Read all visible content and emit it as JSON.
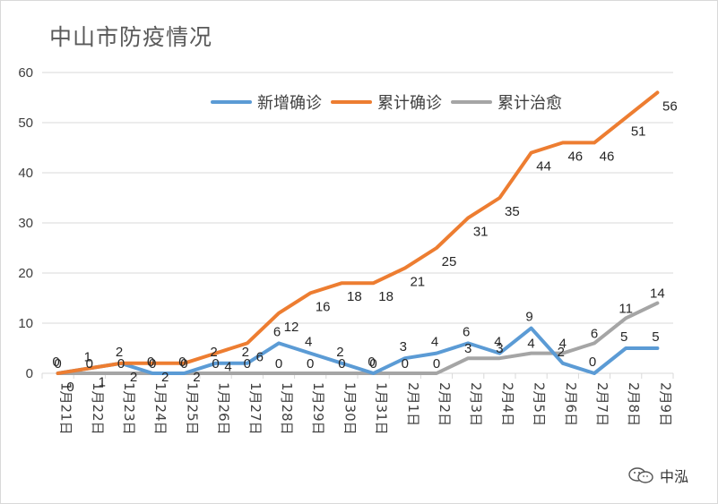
{
  "chart_data": {
    "type": "line",
    "title": "中山市防疫情况",
    "categories": [
      "1月21日",
      "1月22日",
      "1月23日",
      "1月24日",
      "1月25日",
      "1月26日",
      "1月27日",
      "1月28日",
      "1月29日",
      "1月30日",
      "1月31日",
      "2月1日",
      "2月2日",
      "2月3日",
      "2月4日",
      "2月5日",
      "2月6日",
      "2月7日",
      "2月8日",
      "2月9日"
    ],
    "ylim": [
      0,
      60
    ],
    "yticks": [
      0,
      10,
      20,
      30,
      40,
      50,
      60
    ],
    "grid": true,
    "legend_position": "top",
    "series": [
      {
        "name": "新增确诊",
        "color": "#5b9bd5",
        "values": [
          0,
          1,
          2,
          0,
          0,
          2,
          2,
          6,
          4,
          2,
          0,
          3,
          4,
          6,
          4,
          9,
          2,
          0,
          5,
          5
        ]
      },
      {
        "name": "累计确诊",
        "color": "#ed7d31",
        "values": [
          0,
          1,
          2,
          2,
          2,
          4,
          6,
          12,
          16,
          18,
          18,
          21,
          25,
          31,
          35,
          44,
          46,
          46,
          51,
          56
        ]
      },
      {
        "name": "累计治愈",
        "color": "#a5a5a5",
        "values": [
          0,
          0,
          0,
          0,
          0,
          0,
          0,
          0,
          0,
          0,
          0,
          0,
          0,
          3,
          3,
          4,
          4,
          6,
          11,
          14
        ]
      }
    ],
    "data_labels": [
      [
        "0",
        "1",
        "2",
        "0",
        "0",
        "2",
        "2",
        "6",
        "4",
        "2",
        "0",
        "3",
        "4",
        "6",
        "4",
        "9",
        "2",
        "0",
        "5",
        "5"
      ],
      [
        "0",
        "1",
        "2",
        "2",
        "2",
        "4",
        "6",
        "12",
        "16",
        "18",
        "18",
        "21",
        "25",
        "31",
        "35",
        "44",
        "46",
        "46",
        "51",
        "56"
      ],
      [
        "0",
        "0",
        "0",
        "0",
        "0",
        "0",
        "0",
        "0",
        "0",
        "0",
        "0",
        "0",
        "0",
        "3",
        "3",
        "4",
        "4",
        "6",
        "11",
        "14"
      ]
    ]
  },
  "watermark": {
    "text": "中泓",
    "icon": "wechat-icon"
  }
}
